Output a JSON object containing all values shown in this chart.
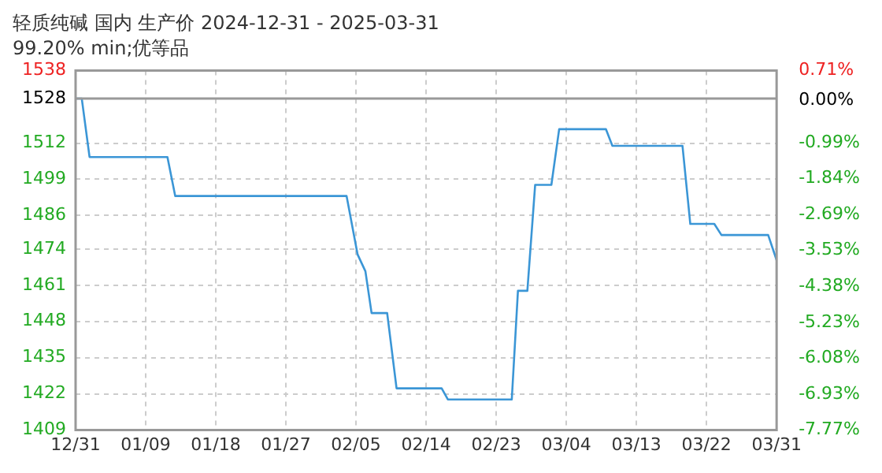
{
  "chart_data": {
    "type": "line",
    "title": "轻质纯碱 国内 生产价 2024-12-31 - 2025-03-31",
    "subtitle": "99.20% min;优等品",
    "series": [
      {
        "color": "#3b96d6",
        "x": [
          "2024-12-31",
          "2024-12-31T19:00",
          "2025-01-01T19:00",
          "2025-01-11T19:00",
          "2025-01-12T19:00",
          "2025-02-03T19:00",
          "2025-02-05T05:00",
          "2025-02-06T05:00",
          "2025-02-07",
          "2025-02-09",
          "2025-02-10T05:00",
          "2025-02-16",
          "2025-02-16T19:00",
          "2025-02-25",
          "2025-02-25T19:00",
          "2025-02-27",
          "2025-02-28",
          "2025-03-02T02:00",
          "2025-03-03T02:00",
          "2025-03-09T02:00",
          "2025-03-09T22:00",
          "2025-03-18T22:00",
          "2025-03-19T22:00",
          "2025-03-23",
          "2025-03-23T22:00",
          "2025-03-29T22:00",
          "2025-03-31"
        ],
        "values": [
          1528,
          1528,
          1507,
          1507,
          1493,
          1493,
          1472,
          1466,
          1451,
          1451,
          1424,
          1424,
          1420,
          1420,
          1459,
          1459,
          1497,
          1497,
          1517,
          1517,
          1511,
          1511,
          1483,
          1483,
          1479,
          1479,
          1470
        ]
      }
    ],
    "xlim": [
      "2024-12-31",
      "2025-03-31"
    ],
    "xticks": [
      {
        "value": "2024-12-31",
        "label": "12/31"
      },
      {
        "value": "2025-01-09",
        "label": "01/09"
      },
      {
        "value": "2025-01-18",
        "label": "01/18"
      },
      {
        "value": "2025-01-27",
        "label": "01/27"
      },
      {
        "value": "2025-02-05",
        "label": "02/05"
      },
      {
        "value": "2025-02-14",
        "label": "02/14"
      },
      {
        "value": "2025-02-23",
        "label": "02/23"
      },
      {
        "value": "2025-03-04",
        "label": "03/04"
      },
      {
        "value": "2025-03-13",
        "label": "03/13"
      },
      {
        "value": "2025-03-22",
        "label": "03/22"
      },
      {
        "value": "2025-03-31",
        "label": "03/31"
      }
    ],
    "ylim": [
      1409,
      1538
    ],
    "yticks": [
      1409,
      1422,
      1435,
      1448,
      1461,
      1474,
      1486,
      1499,
      1512,
      1528,
      1538
    ],
    "y2lim": [
      -7.77,
      0.71
    ],
    "y2ticks": [
      {
        "value": -7.77,
        "label": "-7.77%"
      },
      {
        "value": -6.93,
        "label": "-6.93%"
      },
      {
        "value": -6.08,
        "label": "-6.08%"
      },
      {
        "value": -5.23,
        "label": "-5.23%"
      },
      {
        "value": -4.38,
        "label": "-4.38%"
      },
      {
        "value": -3.53,
        "label": "-3.53%"
      },
      {
        "value": -2.69,
        "label": "-2.69%"
      },
      {
        "value": -1.84,
        "label": "-1.84%"
      },
      {
        "value": -0.99,
        "label": "-0.99%"
      },
      {
        "value": 0,
        "label": "0.00%"
      },
      {
        "value": 0.71,
        "label": "0.71%"
      }
    ],
    "ref_lines": [
      {
        "axis": "y",
        "value": 1528,
        "color": "#999999"
      }
    ],
    "grid": true,
    "legend": false,
    "marker": "none",
    "line_style": "solid"
  }
}
